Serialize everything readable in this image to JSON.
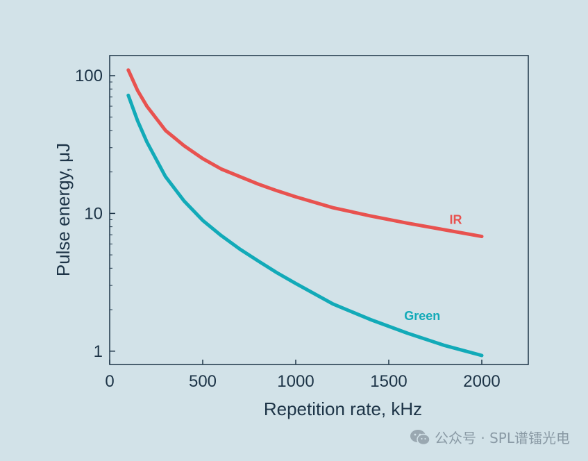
{
  "chart_data": {
    "type": "line",
    "xlabel": "Repetition rate, kHz",
    "ylabel": "Pulse energy, μJ",
    "xlim": [
      0,
      2250
    ],
    "ylim": [
      0.8,
      140
    ],
    "yscale": "log",
    "x_ticks": [
      0,
      500,
      1000,
      1500,
      2000
    ],
    "x_tick_labels": [
      "0",
      "500",
      "1000",
      "1500",
      "2000"
    ],
    "y_ticks": [
      1,
      10,
      100
    ],
    "y_tick_labels": [
      "1",
      "10",
      "100"
    ],
    "grid": false,
    "legend": "inline labels",
    "series": [
      {
        "name": "IR",
        "color": "#e8524f",
        "x": [
          100,
          150,
          200,
          300,
          400,
          500,
          600,
          700,
          800,
          900,
          1000,
          1200,
          1400,
          1600,
          1800,
          2000
        ],
        "y": [
          110,
          78,
          60,
          40,
          31,
          25,
          21,
          18.5,
          16.3,
          14.6,
          13.2,
          11.0,
          9.6,
          8.5,
          7.6,
          6.8
        ]
      },
      {
        "name": "Green",
        "color": "#12aab8",
        "x": [
          100,
          150,
          200,
          300,
          400,
          500,
          600,
          700,
          800,
          900,
          1000,
          1200,
          1400,
          1600,
          1800,
          2000
        ],
        "y": [
          72,
          47,
          33,
          18.5,
          12.3,
          8.9,
          6.9,
          5.5,
          4.5,
          3.7,
          3.1,
          2.2,
          1.7,
          1.35,
          1.1,
          0.93
        ]
      }
    ]
  },
  "watermark": {
    "text": "公众号 · SPL谱镭光电",
    "icon": "wechat-icon"
  }
}
